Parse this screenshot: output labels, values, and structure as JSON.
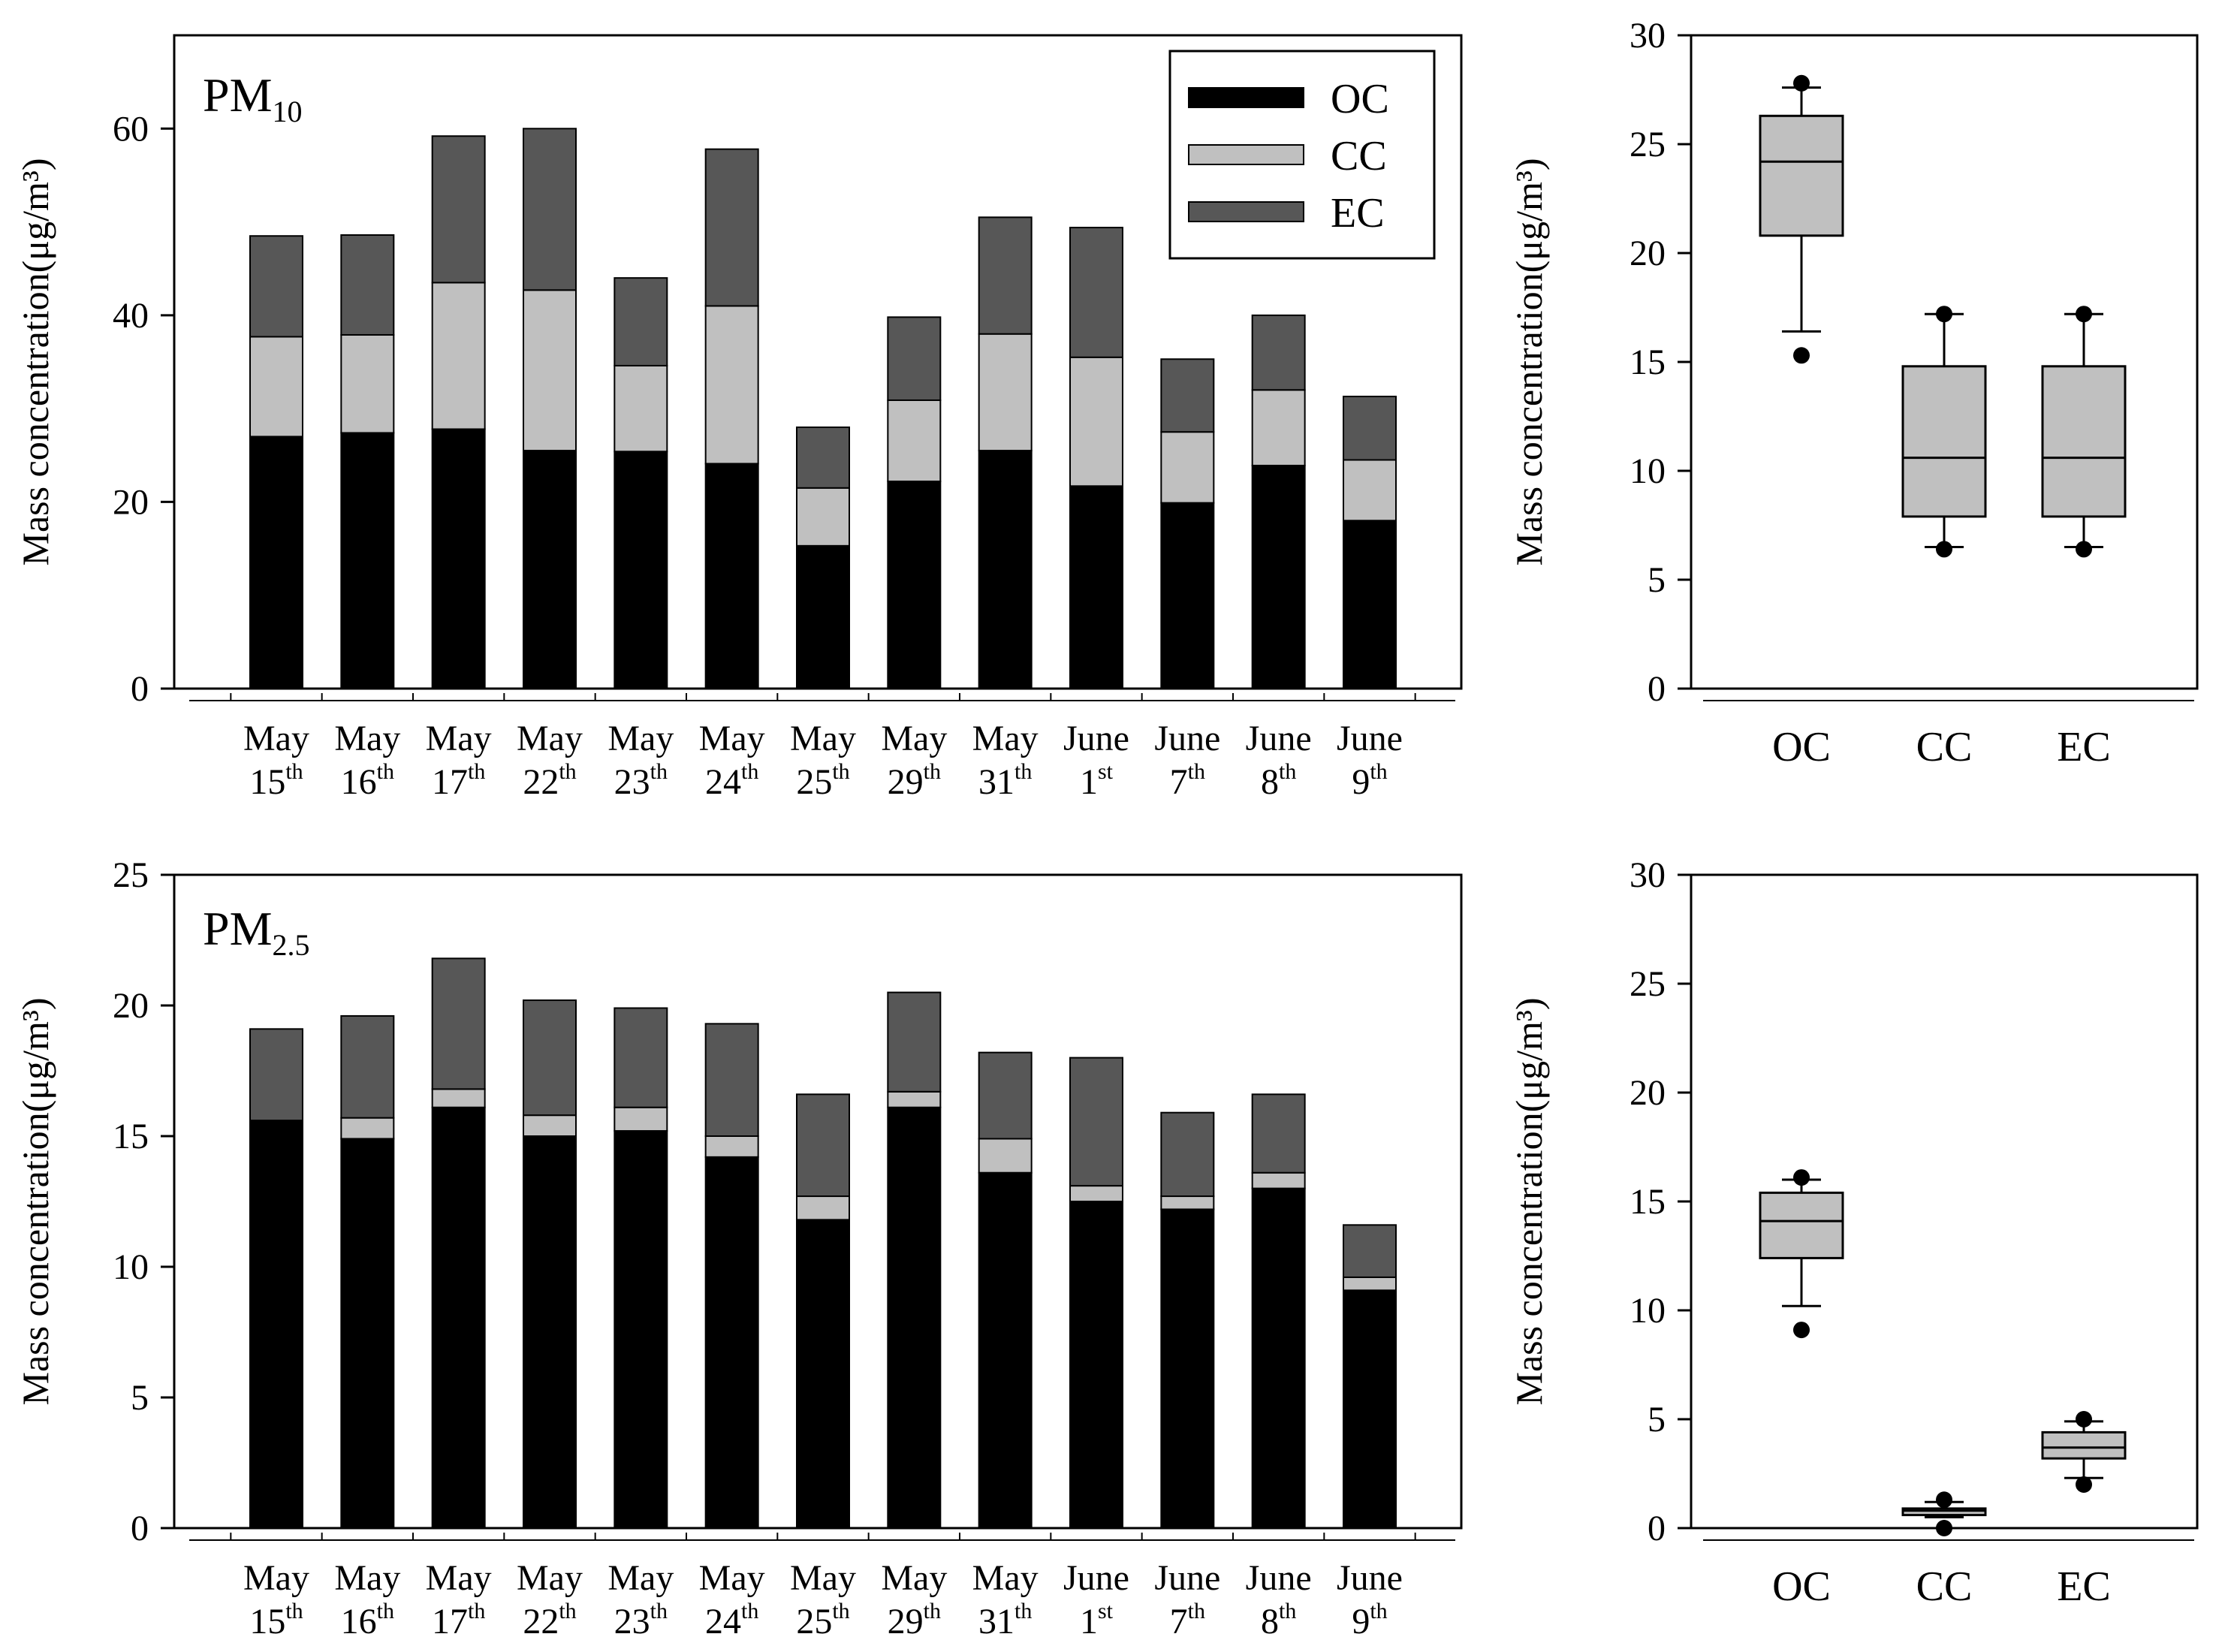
{
  "chart_data": [
    {
      "id": "pm10-bars",
      "type": "bar",
      "stacked": true,
      "title": "PM",
      "title_sub": "10",
      "ylabel": "Mass concentration(μg/m³)",
      "ylim": [
        0,
        70
      ],
      "yticks": [
        0,
        20,
        40,
        60
      ],
      "categories": [
        {
          "month": "May",
          "day": "15",
          "suffix": "th"
        },
        {
          "month": "May",
          "day": "16",
          "suffix": "th"
        },
        {
          "month": "May",
          "day": "17",
          "suffix": "th"
        },
        {
          "month": "May",
          "day": "22",
          "suffix": "th"
        },
        {
          "month": "May",
          "day": "23",
          "suffix": "th"
        },
        {
          "month": "May",
          "day": "24",
          "suffix": "th"
        },
        {
          "month": "May",
          "day": "25",
          "suffix": "th"
        },
        {
          "month": "May",
          "day": "29",
          "suffix": "th"
        },
        {
          "month": "May",
          "day": "31",
          "suffix": "th"
        },
        {
          "month": "June",
          "day": "1",
          "suffix": "st"
        },
        {
          "month": "June",
          "day": "7",
          "suffix": "th"
        },
        {
          "month": "June",
          "day": "8",
          "suffix": "th"
        },
        {
          "month": "June",
          "day": "9",
          "suffix": "th"
        }
      ],
      "series": [
        {
          "name": "OC",
          "color": "#000000",
          "values": [
            27.0,
            27.4,
            27.8,
            25.5,
            25.4,
            24.1,
            15.3,
            22.2,
            25.5,
            21.7,
            19.9,
            23.9,
            18.0
          ]
        },
        {
          "name": "CC",
          "color": "#c0c0c0",
          "values": [
            10.7,
            10.5,
            15.7,
            17.2,
            9.2,
            16.9,
            6.2,
            8.7,
            12.5,
            13.8,
            7.6,
            8.1,
            6.5
          ]
        },
        {
          "name": "EC",
          "color": "#575757",
          "values": [
            10.8,
            10.7,
            15.7,
            17.3,
            9.4,
            16.8,
            6.5,
            8.9,
            12.5,
            13.9,
            7.8,
            8.0,
            6.8
          ]
        }
      ],
      "legend": {
        "position": "top-right",
        "entries": [
          "OC",
          "CC",
          "EC"
        ]
      }
    },
    {
      "id": "pm10-box",
      "type": "box",
      "ylabel": "Mass concentration(μg/m³)",
      "ylim": [
        0,
        30
      ],
      "yticks": [
        0,
        5,
        10,
        15,
        20,
        25,
        30
      ],
      "categories": [
        "OC",
        "CC",
        "EC"
      ],
      "boxes": [
        {
          "name": "OC",
          "whisker_low": 16.4,
          "q1": 20.8,
          "median": 24.2,
          "q3": 26.3,
          "whisker_high": 27.6,
          "outliers": [
            15.3,
            27.8
          ]
        },
        {
          "name": "CC",
          "whisker_low": 6.5,
          "q1": 7.9,
          "median": 10.6,
          "q3": 14.8,
          "whisker_high": 17.2,
          "outliers": [
            6.4,
            17.2
          ]
        },
        {
          "name": "EC",
          "whisker_low": 6.5,
          "q1": 7.9,
          "median": 10.6,
          "q3": 14.8,
          "whisker_high": 17.2,
          "outliers": [
            6.4,
            17.2
          ]
        }
      ]
    },
    {
      "id": "pm25-bars",
      "type": "bar",
      "stacked": true,
      "title": "PM",
      "title_sub": "2.5",
      "ylabel": "Mass concentration(μg/m³)",
      "ylim": [
        0,
        25
      ],
      "yticks": [
        0,
        5,
        10,
        15,
        20,
        25
      ],
      "categories": [
        {
          "month": "May",
          "day": "15",
          "suffix": "th"
        },
        {
          "month": "May",
          "day": "16",
          "suffix": "th"
        },
        {
          "month": "May",
          "day": "17",
          "suffix": "th"
        },
        {
          "month": "May",
          "day": "22",
          "suffix": "th"
        },
        {
          "month": "May",
          "day": "23",
          "suffix": "th"
        },
        {
          "month": "May",
          "day": "24",
          "suffix": "th"
        },
        {
          "month": "May",
          "day": "25",
          "suffix": "th"
        },
        {
          "month": "May",
          "day": "29",
          "suffix": "th"
        },
        {
          "month": "May",
          "day": "31",
          "suffix": "th"
        },
        {
          "month": "June",
          "day": "1",
          "suffix": "st"
        },
        {
          "month": "June",
          "day": "7",
          "suffix": "th"
        },
        {
          "month": "June",
          "day": "8",
          "suffix": "th"
        },
        {
          "month": "June",
          "day": "9",
          "suffix": "th"
        }
      ],
      "series": [
        {
          "name": "OC",
          "color": "#000000",
          "values": [
            15.6,
            14.9,
            16.1,
            15.0,
            15.2,
            14.2,
            11.8,
            16.1,
            13.6,
            12.5,
            12.2,
            13.0,
            9.1
          ]
        },
        {
          "name": "CC",
          "color": "#c0c0c0",
          "values": [
            0.0,
            0.8,
            0.7,
            0.8,
            0.9,
            0.8,
            0.9,
            0.6,
            1.3,
            0.6,
            0.5,
            0.6,
            0.5
          ]
        },
        {
          "name": "EC",
          "color": "#575757",
          "values": [
            3.5,
            3.9,
            5.0,
            4.4,
            3.8,
            4.3,
            3.9,
            3.8,
            3.3,
            4.9,
            3.2,
            3.0,
            2.0
          ]
        }
      ]
    },
    {
      "id": "pm25-box",
      "type": "box",
      "ylabel": "Mass concentration(μg/m³)",
      "ylim": [
        0,
        30
      ],
      "yticks": [
        0,
        5,
        10,
        15,
        20,
        25,
        30
      ],
      "categories": [
        "OC",
        "CC",
        "EC"
      ],
      "boxes": [
        {
          "name": "OC",
          "whisker_low": 10.2,
          "q1": 12.4,
          "median": 14.1,
          "q3": 15.4,
          "whisker_high": 16.0,
          "outliers": [
            9.1,
            16.1
          ]
        },
        {
          "name": "CC",
          "whisker_low": 0.5,
          "q1": 0.6,
          "median": 0.8,
          "q3": 0.9,
          "whisker_high": 1.2,
          "outliers": [
            0.0,
            1.3
          ]
        },
        {
          "name": "EC",
          "whisker_low": 2.3,
          "q1": 3.2,
          "median": 3.7,
          "q3": 4.4,
          "whisker_high": 4.9,
          "outliers": [
            2.0,
            5.0
          ]
        }
      ]
    }
  ]
}
